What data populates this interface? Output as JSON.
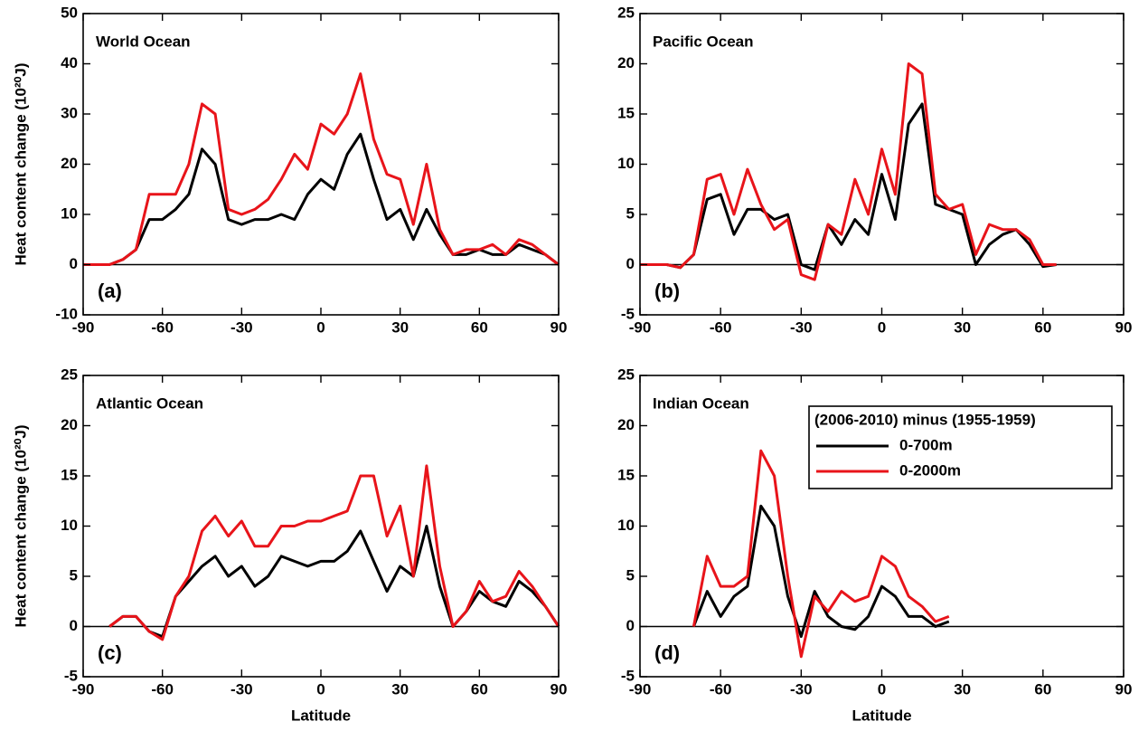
{
  "chart_data": [
    {
      "type": "line",
      "title": "World Ocean",
      "panel_label": "(a)",
      "ylabel": "Heat content change (10²⁰J)",
      "x": [
        -90,
        -85,
        -80,
        -75,
        -70,
        -65,
        -60,
        -55,
        -50,
        -45,
        -40,
        -35,
        -30,
        -25,
        -20,
        -15,
        -10,
        -5,
        0,
        5,
        10,
        15,
        20,
        25,
        30,
        35,
        40,
        45,
        50,
        55,
        60,
        65,
        70,
        75,
        80,
        85,
        90
      ],
      "series": [
        {
          "color": "#000000",
          "values": [
            0,
            0,
            0,
            1,
            3,
            9,
            9,
            11,
            14,
            23,
            20,
            9,
            8,
            9,
            9,
            10,
            9,
            14,
            17,
            15,
            22,
            26,
            17,
            9,
            11,
            5,
            11,
            6,
            2,
            2,
            3,
            2,
            2,
            4,
            3,
            2,
            0
          ]
        },
        {
          "color": "#e8141a",
          "values": [
            0,
            0,
            0,
            1,
            3,
            14,
            14,
            14,
            20,
            32,
            30,
            11,
            10,
            11,
            13,
            17,
            22,
            19,
            28,
            26,
            30,
            38,
            25,
            18,
            17,
            8,
            20,
            7,
            2,
            3,
            3,
            4,
            2,
            5,
            4,
            2,
            0
          ]
        }
      ],
      "xlim": [
        -90,
        90
      ],
      "xticks": [
        -90,
        -60,
        -30,
        0,
        30,
        60,
        90
      ],
      "ylim": [
        -10,
        50
      ],
      "yticks": [
        -10,
        0,
        10,
        20,
        30,
        40,
        50
      ],
      "hline": 0
    },
    {
      "type": "line",
      "title": "Pacific Ocean",
      "panel_label": "(b)",
      "x": [
        -90,
        -85,
        -80,
        -75,
        -70,
        -65,
        -60,
        -55,
        -50,
        -45,
        -40,
        -35,
        -30,
        -25,
        -20,
        -15,
        -10,
        -5,
        0,
        5,
        10,
        15,
        20,
        25,
        30,
        35,
        40,
        45,
        50,
        55,
        60,
        65,
        70,
        75,
        80,
        85,
        90
      ],
      "series": [
        {
          "color": "#000000",
          "values": [
            0,
            0,
            0,
            -0.3,
            1,
            6.5,
            7,
            3,
            5.5,
            5.5,
            4.5,
            5,
            0,
            -0.5,
            4,
            2,
            4.5,
            3,
            9,
            4.5,
            14,
            16,
            6,
            5.5,
            5,
            0,
            2,
            3,
            3.5,
            2,
            -0.2,
            0,
            null,
            null,
            null,
            null,
            null
          ]
        },
        {
          "color": "#e8141a",
          "values": [
            0,
            0,
            0,
            -0.3,
            1,
            8.5,
            9,
            5,
            9.5,
            6,
            3.5,
            4.5,
            -1,
            -1.5,
            4,
            3,
            8.5,
            5,
            11.5,
            7,
            20,
            19,
            7,
            5.5,
            6,
            1,
            4,
            3.5,
            3.5,
            2.5,
            0,
            0,
            null,
            null,
            null,
            null,
            null
          ]
        }
      ],
      "xlim": [
        -90,
        90
      ],
      "xticks": [
        -90,
        -60,
        -30,
        0,
        30,
        60,
        90
      ],
      "ylim": [
        -5,
        25
      ],
      "yticks": [
        -5,
        0,
        5,
        10,
        15,
        20,
        25
      ],
      "hline": 0
    },
    {
      "type": "line",
      "title": "Atlantic Ocean",
      "panel_label": "(c)",
      "ylabel": "Heat content change (10²⁰J)",
      "xlabel": "Latitude",
      "x": [
        -90,
        -85,
        -80,
        -75,
        -70,
        -65,
        -60,
        -55,
        -50,
        -45,
        -40,
        -35,
        -30,
        -25,
        -20,
        -15,
        -10,
        -5,
        0,
        5,
        10,
        15,
        20,
        25,
        30,
        35,
        40,
        45,
        50,
        55,
        60,
        65,
        70,
        75,
        80,
        85,
        90
      ],
      "series": [
        {
          "color": "#000000",
          "values": [
            null,
            null,
            0,
            1,
            1,
            -0.5,
            -1,
            3,
            4.5,
            6,
            7,
            5,
            6,
            4,
            5,
            7,
            6.5,
            6,
            6.5,
            6.5,
            7.5,
            9.5,
            6.5,
            3.5,
            6,
            5,
            10,
            4,
            0,
            1.5,
            3.5,
            2.5,
            2,
            4.5,
            3.5,
            2,
            0
          ]
        },
        {
          "color": "#e8141a",
          "values": [
            null,
            null,
            0,
            1,
            1,
            -0.5,
            -1.3,
            3,
            5,
            9.5,
            11,
            9,
            10.5,
            8,
            8,
            10,
            10,
            10.5,
            10.5,
            11,
            11.5,
            15,
            15,
            9,
            12,
            5,
            16,
            6,
            0,
            1.5,
            4.5,
            2.5,
            3,
            5.5,
            4,
            2,
            0
          ]
        }
      ],
      "xlim": [
        -90,
        90
      ],
      "xticks": [
        -90,
        -60,
        -30,
        0,
        30,
        60,
        90
      ],
      "ylim": [
        -5,
        25
      ],
      "yticks": [
        -5,
        0,
        5,
        10,
        15,
        20,
        25
      ],
      "hline": 0
    },
    {
      "type": "line",
      "title": "Indian Ocean",
      "panel_label": "(d)",
      "xlabel": "Latitude",
      "legend": "upper right",
      "legend_title": "(2006-2010) minus (1955-1959)",
      "x": [
        -90,
        -85,
        -80,
        -75,
        -70,
        -65,
        -60,
        -55,
        -50,
        -45,
        -40,
        -35,
        -30,
        -25,
        -20,
        -15,
        -10,
        -5,
        0,
        5,
        10,
        15,
        20,
        25,
        30,
        35,
        40,
        45,
        50,
        55,
        60,
        65,
        70,
        75,
        80,
        85,
        90
      ],
      "series": [
        {
          "name": "0-700m",
          "color": "#000000",
          "values": [
            null,
            null,
            null,
            null,
            0,
            3.5,
            1,
            3,
            4,
            12,
            10,
            3,
            -1,
            3.5,
            1,
            0,
            -0.3,
            1,
            4,
            3,
            1,
            1,
            0,
            0.5,
            null,
            null,
            null,
            null,
            null,
            null,
            null,
            null,
            null,
            null,
            null,
            null,
            null
          ]
        },
        {
          "name": "0-2000m",
          "color": "#e8141a",
          "values": [
            null,
            null,
            null,
            null,
            0,
            7,
            4,
            4,
            5,
            17.5,
            15,
            5,
            -3,
            3,
            1.5,
            3.5,
            2.5,
            3,
            7,
            6,
            3,
            2,
            0.5,
            1,
            null,
            null,
            null,
            null,
            null,
            null,
            null,
            null,
            null,
            null,
            null,
            null,
            null
          ]
        }
      ],
      "xlim": [
        -90,
        90
      ],
      "xticks": [
        -90,
        -60,
        -30,
        0,
        30,
        60,
        90
      ],
      "ylim": [
        -5,
        25
      ],
      "yticks": [
        -5,
        0,
        5,
        10,
        15,
        20,
        25
      ],
      "hline": 0
    }
  ]
}
